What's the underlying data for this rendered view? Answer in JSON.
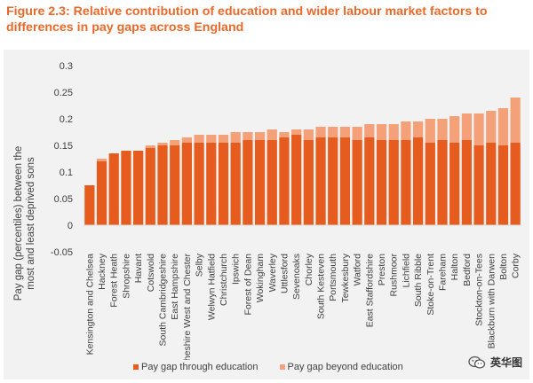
{
  "figure": {
    "title_line1": "Figure 2.3: Relative contribution of education and wider labour market factors to",
    "title_line2": "differences in pay gaps across England"
  },
  "colors": {
    "through": "#e65c1e",
    "beyond": "#f4a17a",
    "title": "#e8692a",
    "panel": "#f2f2f2"
  },
  "chart_data": {
    "type": "bar",
    "stacked": true,
    "ylabel": "Pay gap (percentiles) between the most and least deprived sons",
    "ylim": [
      -0.05,
      0.3
    ],
    "yticks": [
      -0.05,
      0,
      0.05,
      0.1,
      0.15,
      0.2,
      0.25,
      0.3
    ],
    "grid": false,
    "legend_position": "bottom",
    "categories": [
      "Kensington and Chelsea",
      "Hackney",
      "Forest Heath",
      "Shropshire",
      "Havant",
      "Cotswold",
      "South Cambridgeshire",
      "East Hampshire",
      "Cheshire West and Chester",
      "Selby",
      "Welwyn Hatfield",
      "Christchurch",
      "Ipswich",
      "Forest of Dean",
      "Wokingham",
      "Waverley",
      "Uttlesford",
      "Sevenoaks",
      "Chorley",
      "South Kesteven",
      "Portsmouth",
      "Tewkesbury",
      "Watford",
      "East Staffordshire",
      "Preston",
      "Rushmoor",
      "Lichfield",
      "South Ribble",
      "Stoke-on-Trent",
      "Fareham",
      "Halton",
      "Bedford",
      "Stockton-on-Tees",
      "Blackburn with Darwen",
      "Bolton",
      "Corby"
    ],
    "series": [
      {
        "name": "Pay gap through education",
        "values": [
          0.075,
          0.12,
          0.135,
          0.14,
          0.14,
          0.145,
          0.15,
          0.15,
          0.155,
          0.155,
          0.155,
          0.155,
          0.155,
          0.16,
          0.16,
          0.16,
          0.165,
          0.17,
          0.16,
          0.165,
          0.165,
          0.165,
          0.16,
          0.165,
          0.16,
          0.16,
          0.16,
          0.165,
          0.155,
          0.16,
          0.155,
          0.16,
          0.15,
          0.155,
          0.15,
          0.155
        ]
      },
      {
        "name": "Pay gap beyond education",
        "values": [
          0.0,
          0.005,
          0.0,
          0.0,
          0.0,
          0.005,
          0.005,
          0.01,
          0.01,
          0.015,
          0.015,
          0.015,
          0.02,
          0.015,
          0.015,
          0.02,
          0.01,
          0.01,
          0.02,
          0.02,
          0.02,
          0.02,
          0.025,
          0.025,
          0.03,
          0.03,
          0.035,
          0.03,
          0.045,
          0.04,
          0.05,
          0.05,
          0.06,
          0.06,
          0.07,
          0.085
        ]
      }
    ]
  },
  "legend": {
    "through_label": "Pay gap through education",
    "beyond_label": "Pay gap beyond education"
  },
  "watermark": {
    "text": "英华图"
  }
}
